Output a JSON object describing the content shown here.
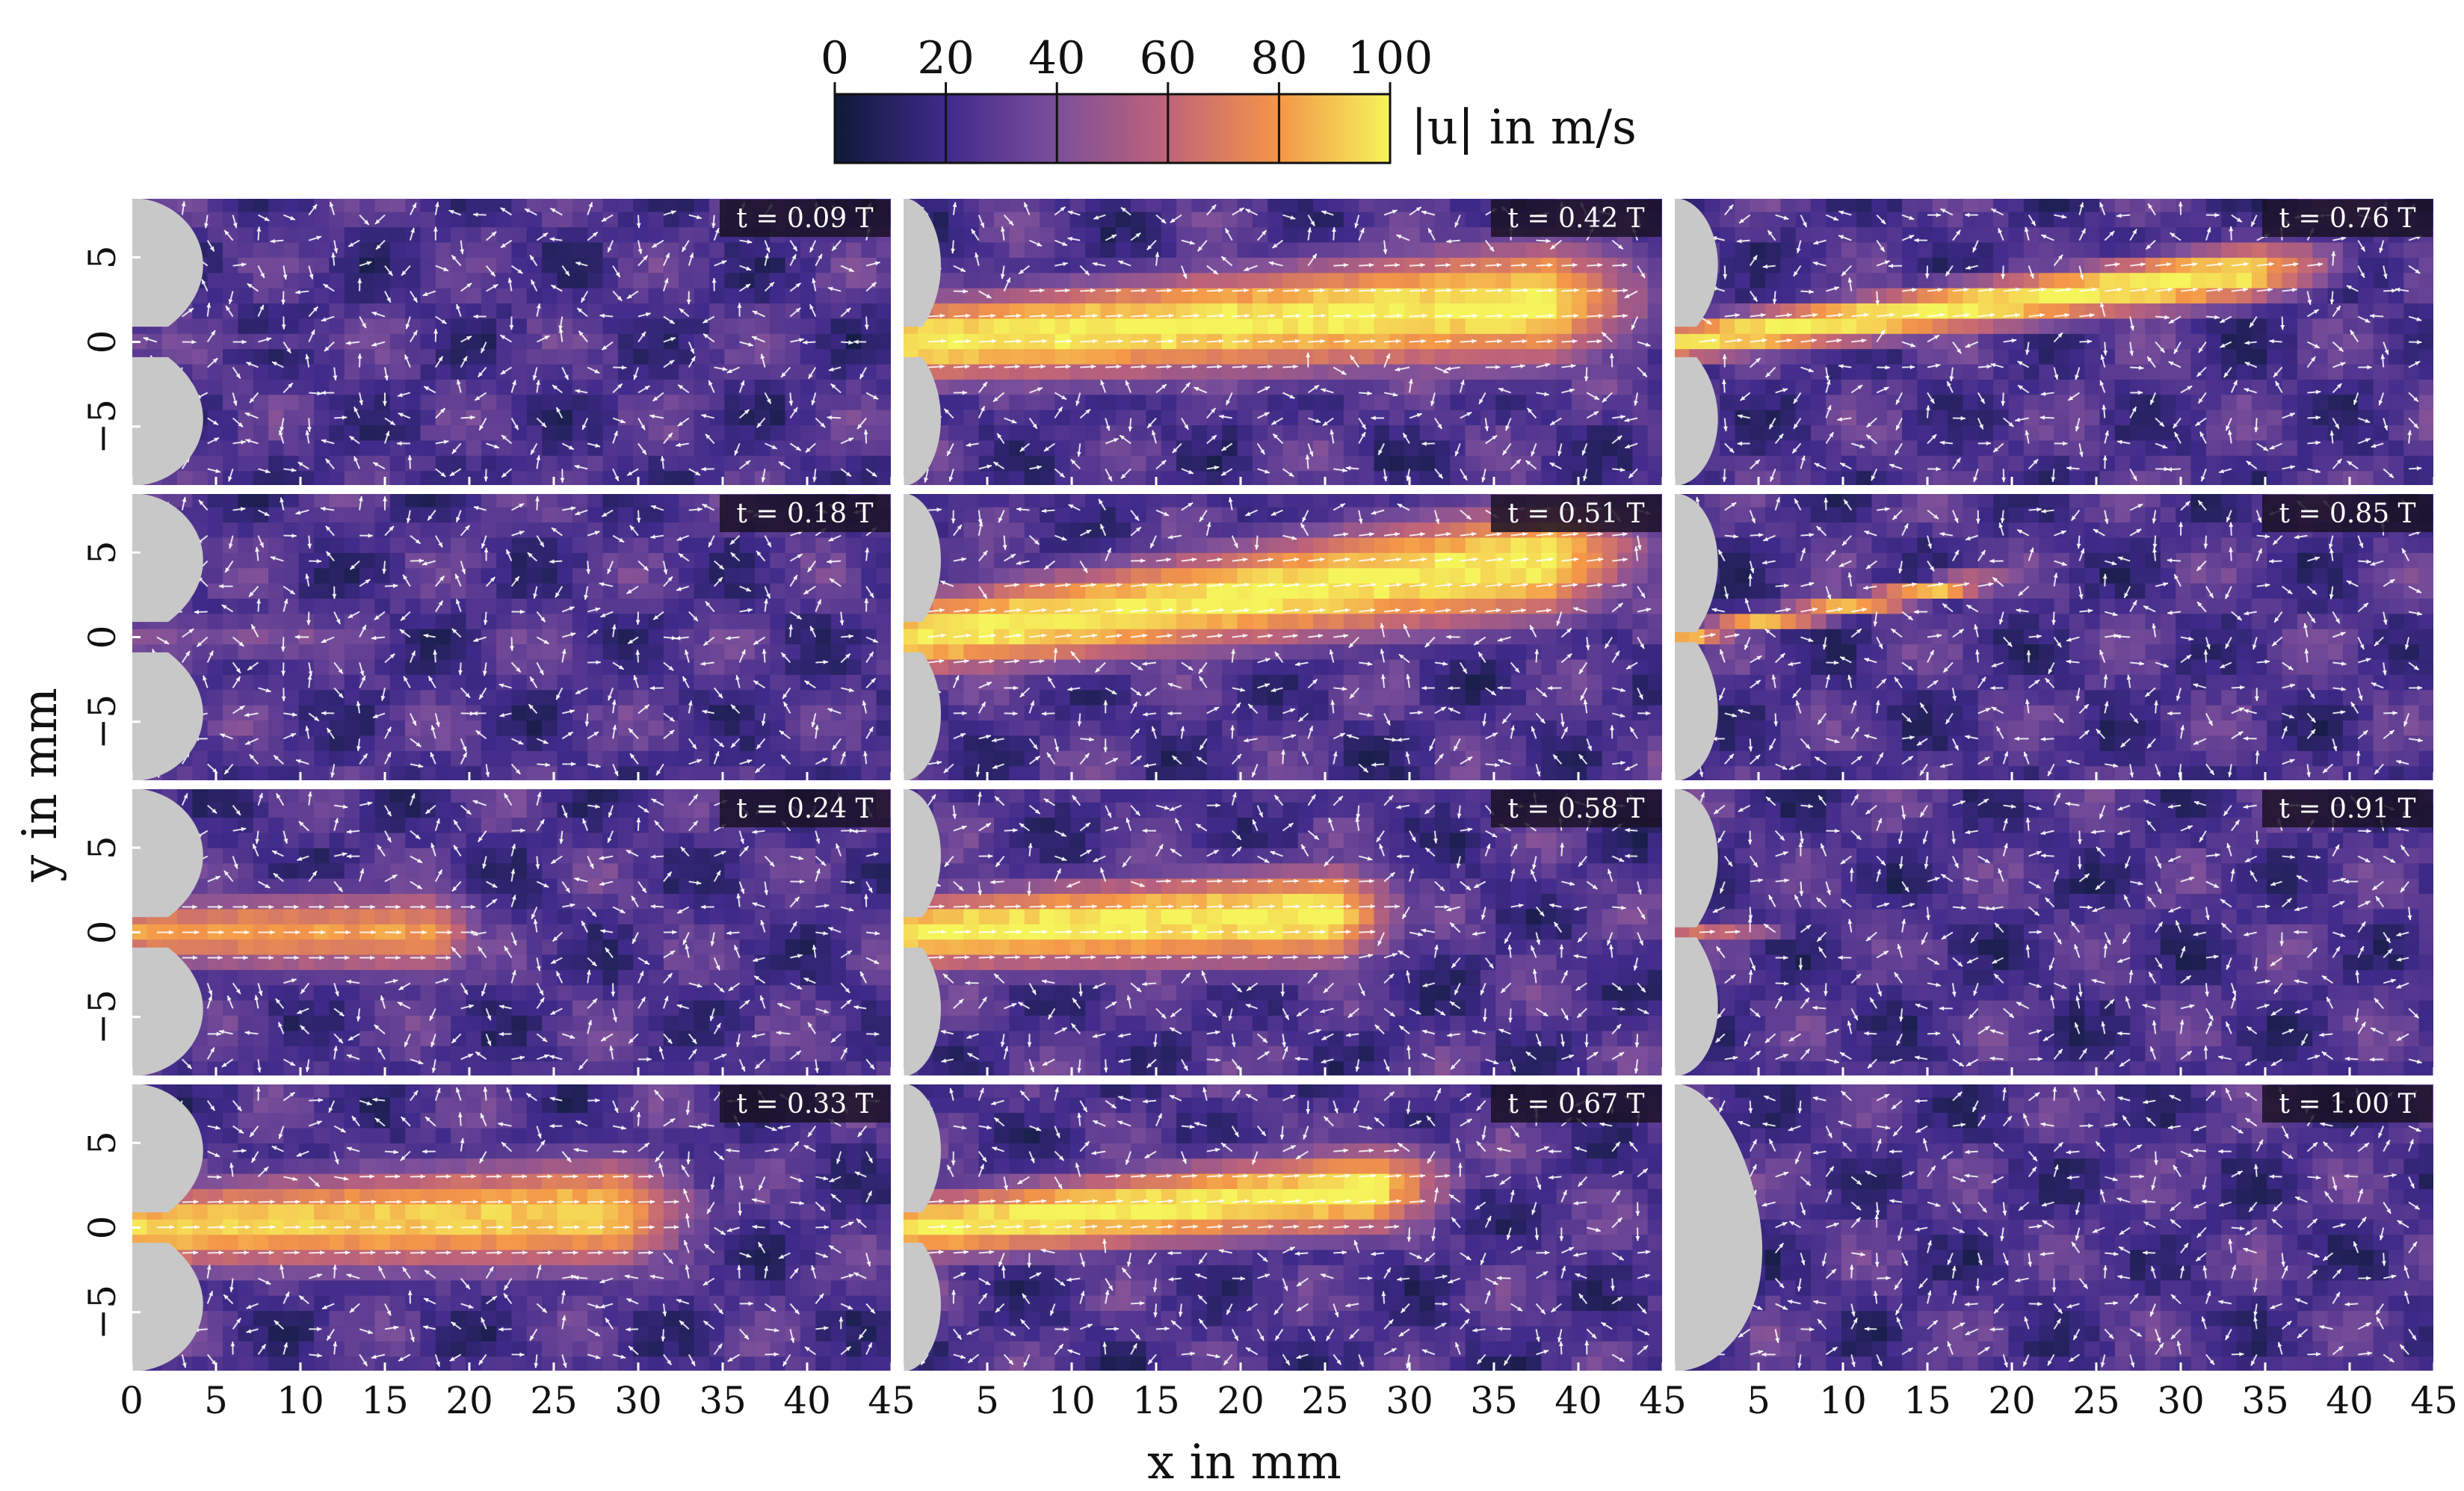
{
  "chart_data": {
    "type": "heatmap",
    "layout": {
      "rows": 4,
      "columns": 3
    },
    "xlabel": "x in mm",
    "ylabel": "y in mm",
    "xlim": [
      0,
      45
    ],
    "ylim": [
      -8.5,
      8.5
    ],
    "x_ticks": [
      0,
      5,
      10,
      15,
      20,
      25,
      30,
      35,
      40,
      45
    ],
    "x_tick_labels_by_column": [
      [
        "0",
        "5",
        "10",
        "15",
        "20",
        "25",
        "30",
        "35",
        "40",
        "45"
      ],
      [
        "5",
        "10",
        "15",
        "20",
        "25",
        "30",
        "35",
        "40",
        "45"
      ],
      [
        "5",
        "10",
        "15",
        "20",
        "25",
        "30",
        "35",
        "40",
        "45"
      ]
    ],
    "y_ticks": [
      5,
      0,
      -5
    ],
    "y_tick_labels": [
      "5",
      "0",
      "−5"
    ],
    "colorbar": {
      "label": "|u| in m/s",
      "range": [
        0,
        100
      ],
      "ticks": [
        0,
        20,
        40,
        60,
        80,
        100
      ],
      "tick_labels": [
        "0",
        "20",
        "40",
        "60",
        "80",
        "100"
      ],
      "colormap": [
        "#0d1a36",
        "#3f2a8a",
        "#7b4f9a",
        "#c06478",
        "#f49648",
        "#f5f55b"
      ]
    },
    "vector_field": "white arrows showing velocity direction",
    "panels": [
      {
        "time": "t = 0.09 T",
        "column": 0,
        "row": 0,
        "jet_length_mm": 13,
        "peak_speed": 35,
        "half_width_mm": 0.8,
        "tilt": 0.04
      },
      {
        "time": "t = 0.18 T",
        "column": 0,
        "row": 1,
        "jet_length_mm": 13,
        "peak_speed": 40,
        "half_width_mm": 2.2,
        "tilt": 0.0
      },
      {
        "time": "t = 0.24 T",
        "column": 0,
        "row": 2,
        "jet_length_mm": 21,
        "peak_speed": 80,
        "half_width_mm": 3.0,
        "tilt": 0.0
      },
      {
        "time": "t = 0.33 T",
        "column": 0,
        "row": 3,
        "jet_length_mm": 34,
        "peak_speed": 92,
        "half_width_mm": 3.6,
        "tilt": 0.03
      },
      {
        "time": "t = 0.42 T",
        "column": 1,
        "row": 0,
        "jet_length_mm": 45,
        "peak_speed": 100,
        "half_width_mm": 3.6,
        "tilt": 0.06
      },
      {
        "time": "t = 0.51 T",
        "column": 1,
        "row": 1,
        "jet_length_mm": 45,
        "peak_speed": 100,
        "half_width_mm": 3.5,
        "tilt": 0.12
      },
      {
        "time": "t = 0.58 T",
        "column": 1,
        "row": 2,
        "jet_length_mm": 30,
        "peak_speed": 100,
        "half_width_mm": 3.2,
        "tilt": 0.04
      },
      {
        "time": "t = 0.67 T",
        "column": 1,
        "row": 3,
        "jet_length_mm": 33,
        "peak_speed": 100,
        "half_width_mm": 2.8,
        "tilt": 0.08
      },
      {
        "time": "t = 0.76 T",
        "column": 2,
        "row": 0,
        "jet_length_mm": 40,
        "peak_speed": 100,
        "half_width_mm": 1.8,
        "tilt": 0.12
      },
      {
        "time": "t = 0.85 T",
        "column": 2,
        "row": 1,
        "jet_length_mm": 20,
        "peak_speed": 88,
        "half_width_mm": 0.9,
        "tilt": 0.18
      },
      {
        "time": "t = 0.91 T",
        "column": 2,
        "row": 2,
        "jet_length_mm": 7,
        "peak_speed": 65,
        "half_width_mm": 0.5,
        "tilt": 0.05
      },
      {
        "time": "t = 1.00 T",
        "column": 2,
        "row": 3,
        "jet_length_mm": 0,
        "peak_speed": 0,
        "half_width_mm": 0,
        "tilt": 0.0
      }
    ]
  }
}
